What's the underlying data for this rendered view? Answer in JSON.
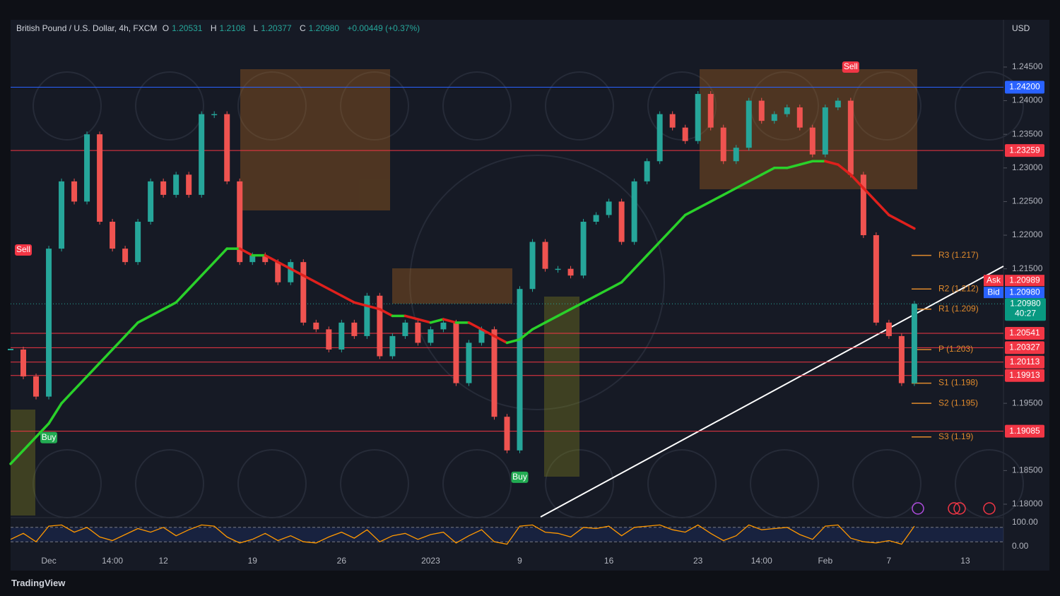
{
  "chart_data": {
    "type": "line",
    "currency": "USD",
    "brand": "TradingView",
    "header": {
      "symbol": "British Pound / U.S. Dollar, 4h, FXCM",
      "open_key": "O",
      "open": "1.20531",
      "high_key": "H",
      "high": "1.2108",
      "low_key": "L",
      "low": "1.20377",
      "close_key": "C",
      "close": "1.20980",
      "change": "+0.00449 (+0.37%)"
    },
    "categories": [
      null,
      null,
      null,
      "Dec",
      null,
      null,
      null,
      null,
      "14:00",
      null,
      null,
      null,
      "12",
      null,
      null,
      null,
      null,
      null,
      null,
      "19",
      null,
      null,
      null,
      null,
      null,
      null,
      "26",
      null,
      null,
      null,
      null,
      null,
      null,
      "2023",
      null,
      null,
      null,
      null,
      null,
      null,
      "9",
      null,
      null,
      null,
      null,
      null,
      null,
      "16",
      null,
      null,
      null,
      null,
      null,
      null,
      "23",
      null,
      null,
      null,
      null,
      "14:00",
      null,
      null,
      null,
      null,
      "Feb",
      null,
      null,
      null,
      null,
      "7",
      null,
      null,
      null,
      null,
      null,
      "13",
      null,
      null
    ],
    "series": [
      {
        "style": "candles",
        "color": "#26a69a",
        "down_color": "#ef5350",
        "values": [
          1.203,
          1.199,
          1.196,
          1.218,
          1.228,
          1.225,
          1.235,
          1.222,
          1.218,
          1.216,
          1.222,
          1.228,
          1.226,
          1.229,
          1.226,
          1.238,
          1.238,
          1.228,
          1.216,
          1.217,
          1.216,
          1.213,
          1.216,
          1.207,
          1.206,
          1.203,
          1.207,
          1.205,
          1.211,
          1.202,
          1.205,
          1.207,
          1.204,
          1.206,
          1.207,
          1.198,
          1.204,
          1.206,
          1.193,
          1.188,
          1.212,
          1.219,
          1.215,
          1.215,
          1.214,
          1.222,
          1.223,
          1.225,
          1.219,
          1.228,
          1.231,
          1.238,
          1.236,
          1.234,
          1.241,
          1.236,
          1.231,
          1.233,
          1.24,
          1.237,
          1.238,
          1.239,
          1.236,
          1.232,
          1.239,
          1.24,
          1.229,
          1.22,
          1.207,
          1.205,
          1.198,
          1.2098,
          null,
          null,
          null,
          null,
          null,
          null
        ]
      },
      {
        "style": "trend-line",
        "color": "#2ad12a",
        "down_color": "#e0201c",
        "values": [
          1.186,
          1.188,
          1.19,
          1.192,
          1.195,
          1.197,
          1.199,
          1.201,
          1.203,
          1.205,
          1.207,
          1.208,
          1.209,
          1.21,
          1.212,
          1.214,
          1.216,
          1.218,
          1.218,
          1.217,
          1.217,
          1.216,
          1.215,
          1.214,
          1.213,
          1.212,
          1.211,
          1.21,
          1.2095,
          1.209,
          1.208,
          1.208,
          1.2075,
          1.207,
          1.2075,
          1.207,
          1.207,
          1.206,
          1.205,
          1.204,
          1.2045,
          1.206,
          1.207,
          1.208,
          1.209,
          1.21,
          1.211,
          1.212,
          1.213,
          1.215,
          1.217,
          1.219,
          1.221,
          1.223,
          1.224,
          1.225,
          1.226,
          1.227,
          1.228,
          1.229,
          1.23,
          1.23,
          1.2305,
          1.231,
          1.231,
          1.2305,
          1.229,
          1.227,
          1.225,
          1.223,
          1.222,
          1.221,
          null,
          null,
          null,
          null,
          null,
          null
        ]
      }
    ],
    "ylim": [
      1.17832,
      1.25182
    ],
    "yticks": [
      {
        "value": 1.245,
        "label": "1.24500"
      },
      {
        "value": 1.24,
        "label": "1.24000"
      },
      {
        "value": 1.235,
        "label": "1.23500"
      },
      {
        "value": 1.23,
        "label": "1.23000"
      },
      {
        "value": 1.225,
        "label": "1.22500"
      },
      {
        "value": 1.22,
        "label": "1.22000"
      },
      {
        "value": 1.215,
        "label": "1.21500"
      },
      {
        "value": 1.195,
        "label": "1.19500"
      },
      {
        "value": 1.185,
        "label": "1.18500"
      },
      {
        "value": 1.18,
        "label": "1.18000"
      }
    ],
    "levels": [
      {
        "value": 1.242,
        "label": "1.24200",
        "color": "#2962ff"
      },
      {
        "value": 1.23259,
        "label": "1.23259",
        "color": "#f23645"
      },
      {
        "value": 1.20541,
        "label": "1.20541",
        "color": "#f23645"
      },
      {
        "value": 1.20327,
        "label": "1.20327",
        "color": "#f23645"
      },
      {
        "value": 1.20113,
        "label": "1.20113",
        "color": "#f23645"
      },
      {
        "value": 1.19913,
        "label": "1.19913",
        "color": "#f23645"
      },
      {
        "value": 1.19085,
        "label": "1.19085",
        "color": "#f23645"
      }
    ],
    "pivots": [
      {
        "value": 1.217,
        "label": "R3 (1.217)"
      },
      {
        "value": 1.212,
        "label": "R2 (1.212)"
      },
      {
        "value": 1.209,
        "label": "R1 (1.209)"
      },
      {
        "value": 1.203,
        "label": "P (1.203)"
      },
      {
        "value": 1.198,
        "label": "S1 (1.198)"
      },
      {
        "value": 1.195,
        "label": "S2 (1.195)"
      },
      {
        "value": 1.19,
        "label": "S3 (1.19)"
      }
    ],
    "pivot_color": "#e08a2c",
    "quote": {
      "ask_key": "Ask",
      "ask": 1.20989,
      "ask_label": "1.20989",
      "bid_key": "Bid",
      "bid": 1.2098,
      "bid_label": "1.20980",
      "last": 1.2098,
      "last_label": "1.20980",
      "countdown": "40:27"
    },
    "signals": [
      {
        "label": "Sell",
        "at": 1,
        "value": 1.2178,
        "color": "#f23645"
      },
      {
        "label": "Buy",
        "at": 3,
        "value": 1.1899,
        "color": "#22ab52"
      },
      {
        "label": "Buy",
        "at": 40,
        "value": 1.184,
        "color": "#22ab52"
      },
      {
        "label": "Sell",
        "at": 66,
        "value": 1.245,
        "color": "#f23645"
      }
    ],
    "oscillator": {
      "ylim": [
        0,
        100
      ],
      "yticks": [
        {
          "value": 100,
          "label": "100.00"
        },
        {
          "value": 0,
          "label": "0.00"
        }
      ],
      "bands": [
        80,
        20
      ],
      "color": "#ff9800",
      "values": [
        30,
        55,
        20,
        85,
        90,
        60,
        80,
        40,
        25,
        50,
        75,
        60,
        80,
        45,
        70,
        90,
        85,
        40,
        15,
        30,
        55,
        25,
        45,
        20,
        15,
        40,
        60,
        35,
        70,
        20,
        45,
        55,
        30,
        50,
        60,
        15,
        45,
        70,
        20,
        10,
        85,
        90,
        60,
        55,
        40,
        80,
        75,
        85,
        45,
        80,
        85,
        90,
        70,
        60,
        90,
        55,
        25,
        45,
        90,
        70,
        75,
        80,
        50,
        30,
        85,
        90,
        35,
        20,
        15,
        25,
        10,
        85,
        null,
        null,
        null,
        null,
        null,
        null
      ]
    }
  }
}
